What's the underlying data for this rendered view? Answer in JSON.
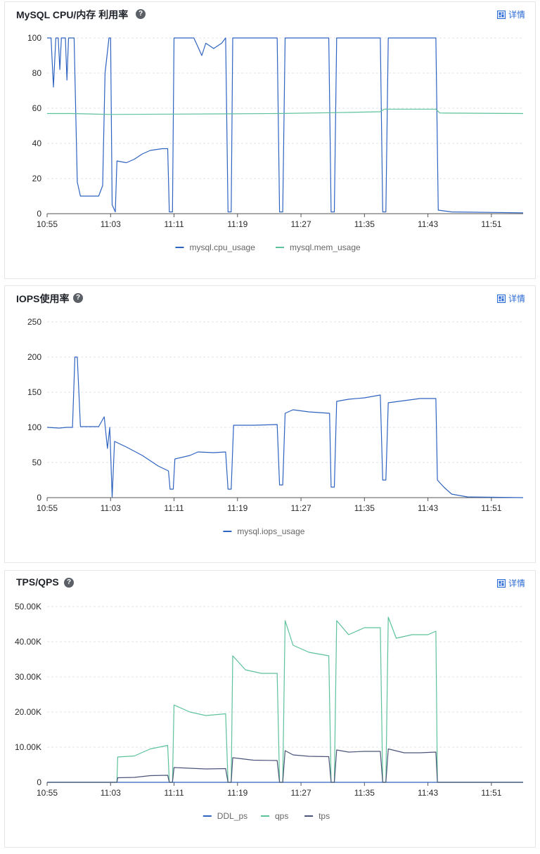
{
  "detail_label": "详情",
  "help_glyph": "?",
  "panels": [
    {
      "title": "MySQL CPU/内存 利用率",
      "help_icon": "question-circle-icon",
      "detail_icon": "dashboard-icon"
    },
    {
      "title": "IOPS使用率",
      "help_icon": "question-circle-icon",
      "detail_icon": "dashboard-icon"
    },
    {
      "title": "TPS/QPS",
      "help_icon": "question-circle-icon",
      "detail_icon": "dashboard-icon"
    }
  ],
  "colors": {
    "accent": "#2b6bd6",
    "blue_series": "#2f63c0",
    "green_series": "#5cc29a",
    "dark_series": "#4a5478",
    "grid": "#e1e3e8"
  },
  "chart_data": [
    {
      "type": "line",
      "title": "MySQL CPU/内存 利用率",
      "x_ticks": [
        "10:55",
        "11:03",
        "11:11",
        "11:19",
        "11:27",
        "11:35",
        "11:43",
        "11:51"
      ],
      "xlim": [
        "10:55",
        "11:55"
      ],
      "ylim": [
        0,
        100
      ],
      "y_ticks": [
        "0",
        "20",
        "40",
        "60",
        "80",
        "100"
      ],
      "y_tick_values": [
        0,
        20,
        40,
        60,
        80,
        100
      ],
      "grid": true,
      "legend_position": "bottom-center",
      "series": [
        {
          "name": "mysql.cpu_usage",
          "color": "#2f63c0",
          "points": [
            [
              "10:55",
              100
            ],
            [
              "10:55.5",
              100
            ],
            [
              "10:55.8",
              72
            ],
            [
              "10:56.1",
              100
            ],
            [
              "10:56.4",
              100
            ],
            [
              "10:56.6",
              82
            ],
            [
              "10:56.8",
              100
            ],
            [
              "10:57.3",
              100
            ],
            [
              "10:57.5",
              76
            ],
            [
              "10:57.7",
              100
            ],
            [
              "10:58.4",
              100
            ],
            [
              "10:58.8",
              18
            ],
            [
              "10:59.2",
              10
            ],
            [
              "11:01.5",
              10
            ],
            [
              "11:02",
              16
            ],
            [
              "11:02.3",
              80
            ],
            [
              "11:02.8",
              100
            ],
            [
              "11:03",
              100
            ],
            [
              "11:03.2",
              5
            ],
            [
              "11:03.6",
              1
            ],
            [
              "11:03.8",
              30
            ],
            [
              "11:05",
              29
            ],
            [
              "11:06",
              31
            ],
            [
              "11:07",
              34
            ],
            [
              "11:08",
              36
            ],
            [
              "11:09.5",
              37
            ],
            [
              "11:10.2",
              37
            ],
            [
              "11:10.4",
              1
            ],
            [
              "11:10.8",
              1
            ],
            [
              "11:11",
              100
            ],
            [
              "11:13.5",
              100
            ],
            [
              "11:14",
              95
            ],
            [
              "11:14.5",
              90
            ],
            [
              "11:15",
              97
            ],
            [
              "11:16",
              94
            ],
            [
              "11:17",
              97
            ],
            [
              "11:17.5",
              100
            ],
            [
              "11:17.8",
              1
            ],
            [
              "11:18.2",
              1
            ],
            [
              "11:18.4",
              100
            ],
            [
              "11:24",
              100
            ],
            [
              "11:24.3",
              1
            ],
            [
              "11:24.7",
              1
            ],
            [
              "11:25",
              100
            ],
            [
              "11:30.5",
              100
            ],
            [
              "11:30.8",
              1
            ],
            [
              "11:31.2",
              1
            ],
            [
              "11:31.5",
              100
            ],
            [
              "11:37",
              100
            ],
            [
              "11:37.3",
              1
            ],
            [
              "11:37.7",
              1
            ],
            [
              "11:38",
              100
            ],
            [
              "11:44",
              100
            ],
            [
              "11:44.3",
              2
            ],
            [
              "11:46",
              1
            ],
            [
              "11:55",
              0.5
            ]
          ]
        },
        {
          "name": "mysql.mem_usage",
          "color": "#5cc29a",
          "points": [
            [
              "10:55",
              57
            ],
            [
              "10:58",
              57
            ],
            [
              "11:03",
              56.5
            ],
            [
              "11:17",
              56.8
            ],
            [
              "11:24",
              57
            ],
            [
              "11:31",
              57.5
            ],
            [
              "11:37",
              58
            ],
            [
              "11:37.5",
              59.5
            ],
            [
              "11:44",
              59.5
            ],
            [
              "11:44.5",
              57.3
            ],
            [
              "11:55",
              57
            ]
          ]
        }
      ]
    },
    {
      "type": "line",
      "title": "IOPS使用率",
      "x_ticks": [
        "10:55",
        "11:03",
        "11:11",
        "11:19",
        "11:27",
        "11:35",
        "11:43",
        "11:51"
      ],
      "xlim": [
        "10:55",
        "11:55"
      ],
      "ylim": [
        0,
        250
      ],
      "y_ticks": [
        "0",
        "50",
        "100",
        "150",
        "200",
        "250"
      ],
      "y_tick_values": [
        0,
        50,
        100,
        150,
        200,
        250
      ],
      "grid": true,
      "legend_position": "bottom-center",
      "series": [
        {
          "name": "mysql.iops_usage",
          "color": "#2f63c0",
          "points": [
            [
              "10:55",
              100
            ],
            [
              "10:56.5",
              99
            ],
            [
              "10:57.5",
              100
            ],
            [
              "10:58.2",
              100
            ],
            [
              "10:58.5",
              200
            ],
            [
              "10:58.8",
              200
            ],
            [
              "10:59.2",
              101
            ],
            [
              "11:01.5",
              101
            ],
            [
              "11:02.2",
              115
            ],
            [
              "11:02.6",
              70
            ],
            [
              "11:02.9",
              100
            ],
            [
              "11:03.2",
              1
            ],
            [
              "11:03.5",
              80
            ],
            [
              "11:05",
              72
            ],
            [
              "11:07",
              60
            ],
            [
              "11:09",
              45
            ],
            [
              "11:10.3",
              38
            ],
            [
              "11:10.5",
              12
            ],
            [
              "11:10.9",
              12
            ],
            [
              "11:11.1",
              55
            ],
            [
              "11:13",
              60
            ],
            [
              "11:14",
              65
            ],
            [
              "11:16",
              64
            ],
            [
              "11:17.5",
              65
            ],
            [
              "11:17.8",
              12
            ],
            [
              "11:18.2",
              12
            ],
            [
              "11:18.5",
              103
            ],
            [
              "11:21",
              103
            ],
            [
              "11:24",
              104
            ],
            [
              "11:24.3",
              18
            ],
            [
              "11:24.7",
              18
            ],
            [
              "11:25",
              120
            ],
            [
              "11:26",
              125
            ],
            [
              "11:28",
              122
            ],
            [
              "11:30.6",
              120
            ],
            [
              "11:30.8",
              15
            ],
            [
              "11:31.2",
              15
            ],
            [
              "11:31.5",
              137
            ],
            [
              "11:33",
              140
            ],
            [
              "11:35",
              142
            ],
            [
              "11:37",
              146
            ],
            [
              "11:37.3",
              25
            ],
            [
              "11:37.7",
              25
            ],
            [
              "11:38",
              135
            ],
            [
              "11:40",
              138
            ],
            [
              "11:42",
              141
            ],
            [
              "11:44",
              141
            ],
            [
              "11:44.2",
              25
            ],
            [
              "11:45",
              15
            ],
            [
              "11:46",
              5
            ],
            [
              "11:48",
              1
            ],
            [
              "11:55",
              0
            ]
          ]
        }
      ]
    },
    {
      "type": "line",
      "title": "TPS/QPS",
      "x_ticks": [
        "10:55",
        "11:03",
        "11:11",
        "11:19",
        "11:27",
        "11:35",
        "11:43",
        "11:51"
      ],
      "xlim": [
        "10:55",
        "11:55"
      ],
      "ylim": [
        0,
        50000
      ],
      "y_ticks": [
        "0",
        "10.00K",
        "20.00K",
        "30.00K",
        "40.00K",
        "50.00K"
      ],
      "y_tick_values": [
        0,
        10000,
        20000,
        30000,
        40000,
        50000
      ],
      "grid": true,
      "legend_position": "bottom-center",
      "series": [
        {
          "name": "DDL_ps",
          "color": "#2f63c0",
          "points": [
            [
              "10:55",
              0
            ],
            [
              "11:55",
              0
            ]
          ]
        },
        {
          "name": "qps",
          "color": "#5cc29a",
          "points": [
            [
              "10:55",
              0
            ],
            [
              "11:03.8",
              0
            ],
            [
              "11:03.9",
              7200
            ],
            [
              "11:06",
              7500
            ],
            [
              "11:08",
              9500
            ],
            [
              "11:10.2",
              10500
            ],
            [
              "11:10.4",
              0
            ],
            [
              "11:10.8",
              0
            ],
            [
              "11:11",
              22000
            ],
            [
              "11:13",
              20000
            ],
            [
              "11:15",
              19000
            ],
            [
              "11:17.5",
              19500
            ],
            [
              "11:17.8",
              0
            ],
            [
              "11:18.2",
              0
            ],
            [
              "11:18.4",
              36000
            ],
            [
              "11:20",
              32000
            ],
            [
              "11:22",
              31000
            ],
            [
              "11:24",
              31000
            ],
            [
              "11:24.3",
              0
            ],
            [
              "11:24.7",
              0
            ],
            [
              "11:25",
              46000
            ],
            [
              "11:26",
              39000
            ],
            [
              "11:28",
              37000
            ],
            [
              "11:30.5",
              36000
            ],
            [
              "11:30.8",
              0
            ],
            [
              "11:31.2",
              0
            ],
            [
              "11:31.5",
              46000
            ],
            [
              "11:33",
              42000
            ],
            [
              "11:35",
              44000
            ],
            [
              "11:37",
              44000
            ],
            [
              "11:37.3",
              0
            ],
            [
              "11:37.7",
              0
            ],
            [
              "11:38",
              47000
            ],
            [
              "11:39",
              41000
            ],
            [
              "11:41",
              42000
            ],
            [
              "11:43",
              42000
            ],
            [
              "11:44",
              43000
            ],
            [
              "11:44.2",
              0
            ],
            [
              "11:55",
              0
            ]
          ]
        },
        {
          "name": "tps",
          "color": "#4a5478",
          "points": [
            [
              "10:55",
              0
            ],
            [
              "11:03.8",
              0
            ],
            [
              "11:03.9",
              1300
            ],
            [
              "11:06",
              1400
            ],
            [
              "11:08",
              1900
            ],
            [
              "11:10.2",
              2000
            ],
            [
              "11:10.4",
              0
            ],
            [
              "11:10.8",
              0
            ],
            [
              "11:11",
              4200
            ],
            [
              "11:13",
              4000
            ],
            [
              "11:15",
              3800
            ],
            [
              "11:17.5",
              3900
            ],
            [
              "11:17.8",
              0
            ],
            [
              "11:18.2",
              0
            ],
            [
              "11:18.4",
              7000
            ],
            [
              "11:21",
              6300
            ],
            [
              "11:24",
              6200
            ],
            [
              "11:24.3",
              0
            ],
            [
              "11:24.7",
              0
            ],
            [
              "11:25",
              9000
            ],
            [
              "11:26",
              7800
            ],
            [
              "11:28",
              7400
            ],
            [
              "11:30.5",
              7300
            ],
            [
              "11:30.8",
              0
            ],
            [
              "11:31.2",
              0
            ],
            [
              "11:31.5",
              9200
            ],
            [
              "11:33",
              8600
            ],
            [
              "11:35",
              8800
            ],
            [
              "11:37",
              8800
            ],
            [
              "11:37.3",
              0
            ],
            [
              "11:37.7",
              0
            ],
            [
              "11:38",
              9500
            ],
            [
              "11:40",
              8400
            ],
            [
              "11:42",
              8400
            ],
            [
              "11:44",
              8600
            ],
            [
              "11:44.2",
              0
            ],
            [
              "11:55",
              0
            ]
          ]
        }
      ]
    }
  ]
}
